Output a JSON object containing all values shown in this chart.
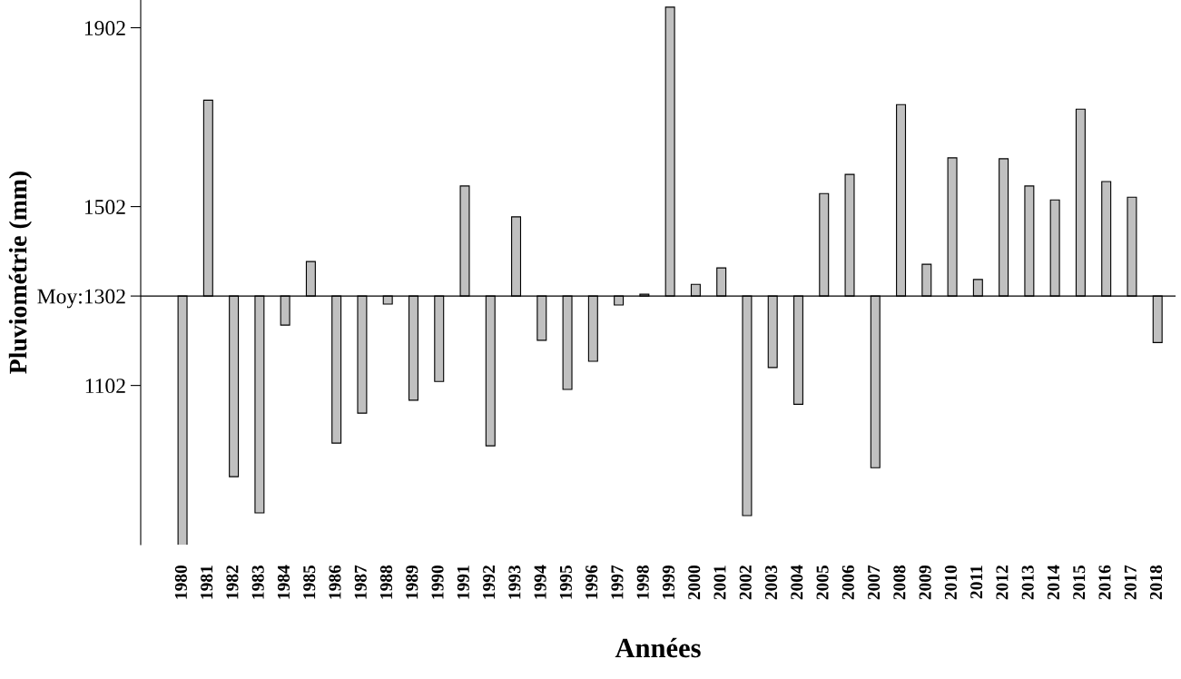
{
  "chart_data": {
    "type": "bar",
    "xlabel": "Années",
    "ylabel": "Pluviométrie (mm)",
    "categories": [
      "1980",
      "1981",
      "1982",
      "1983",
      "1984",
      "1985",
      "1986",
      "1987",
      "1988",
      "1989",
      "1990",
      "1991",
      "1992",
      "1993",
      "1994",
      "1995",
      "1996",
      "1997",
      "1998",
      "1999",
      "2000",
      "2001",
      "2002",
      "2003",
      "2004",
      "2005",
      "2006",
      "2007",
      "2008",
      "2009",
      "2010",
      "2011",
      "2012",
      "2013",
      "2014",
      "2015",
      "2016",
      "2017",
      "2018"
    ],
    "base": [
      1302,
      1302,
      1302,
      1302,
      1302,
      1302,
      1302,
      1302,
      1302,
      1302,
      1302,
      1302,
      1302,
      1302,
      1302,
      1302,
      1302,
      1302,
      1302,
      1302,
      1302,
      1302,
      1302,
      1302,
      1302,
      1302,
      1302,
      1302,
      1302,
      1302,
      1302,
      1302,
      1302,
      1302,
      1302,
      1302,
      1302,
      1302,
      1302
    ],
    "values": [
      -558,
      438,
      -404,
      -485,
      -65,
      77,
      -329,
      -262,
      -18,
      -233,
      -191,
      246,
      -335,
      177,
      -99,
      -209,
      -146,
      -20,
      4,
      646,
      26,
      63,
      -491,
      -160,
      -242,
      229,
      272,
      -384,
      428,
      71,
      309,
      37,
      307,
      246,
      215,
      418,
      256,
      221,
      -104
    ],
    "color": "#c0c0c0",
    "ylim": [
      746,
      1964
    ],
    "yticks": [
      1102,
      {
        "value": 1302,
        "label": "Moy:1302"
      },
      1502,
      1902
    ],
    "ref_lines": [
      {
        "axis": "y",
        "value": 1302,
        "label": null,
        "color": "#000000"
      }
    ],
    "grid": false,
    "legend": false
  }
}
